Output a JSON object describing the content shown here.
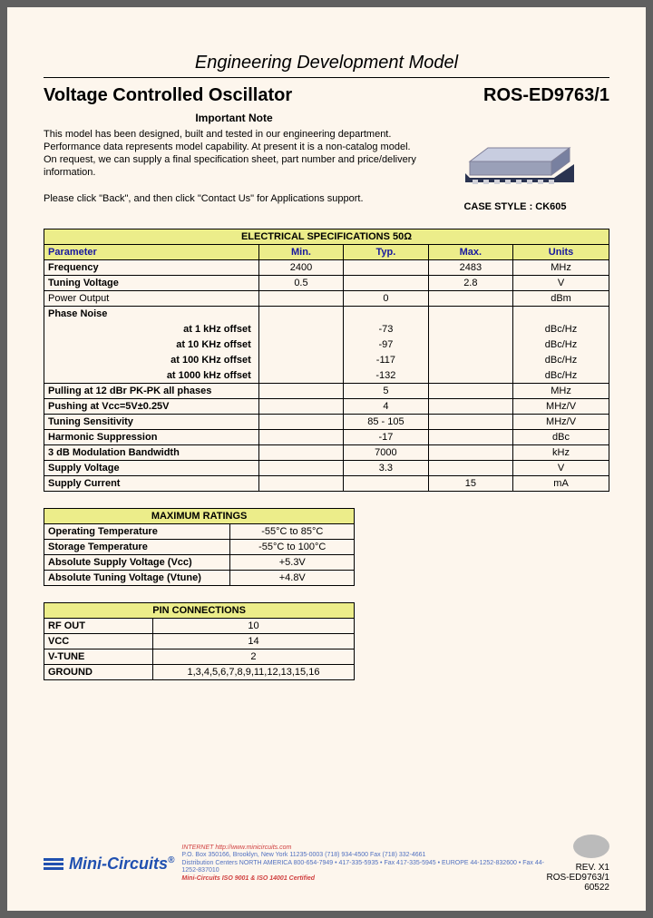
{
  "header": {
    "doc_type": "Engineering Development Model",
    "title": "Voltage Controlled Oscillator",
    "part_number": "ROS-ED9763/1",
    "note_heading": "Important Note",
    "note_body": "This model has been designed, built and tested in our engineering department. Performance data represents model capability. At present it is a non-catalog model. On request, we can supply a final specification sheet, part number and price/delivery information.",
    "note_contact": "Please click \"Back\", and then click \"Contact Us\" for Applications support.",
    "case_style": "CASE STYLE : CK605"
  },
  "colors": {
    "page_bg": "#fdf6ed",
    "table_header_bg": "#eced8a",
    "header_text": "#1818a0",
    "border": "#000000"
  },
  "elec_spec": {
    "title": "ELECTRICAL SPECIFICATIONS   50Ω",
    "columns": [
      "Parameter",
      "Min.",
      "Typ.",
      "Max.",
      "Units"
    ],
    "rows": [
      {
        "param": "Frequency",
        "min": "2400",
        "typ": "",
        "max": "2483",
        "units": "MHz",
        "bold": true
      },
      {
        "param": "Tuning Voltage",
        "min": "0.5",
        "typ": "",
        "max": "2.8",
        "units": "V",
        "bold": true
      },
      {
        "param": "Power Output",
        "min": "",
        "typ": "0",
        "max": "",
        "units": "dBm",
        "bold": false
      }
    ],
    "phase_noise_label": "Phase Noise",
    "phase_noise": [
      {
        "label": "at 1 kHz offset",
        "typ": "-73",
        "units": "dBc/Hz"
      },
      {
        "label": "at 10 KHz offset",
        "typ": "-97",
        "units": "dBc/Hz"
      },
      {
        "label": "at 100 KHz offset",
        "typ": "-117",
        "units": "dBc/Hz"
      },
      {
        "label": "at 1000 kHz offset",
        "typ": "-132",
        "units": "dBc/Hz"
      }
    ],
    "rows2": [
      {
        "param": "Pulling at 12 dBr PK-PK all phases",
        "min": "",
        "typ": "5",
        "max": "",
        "units": "MHz",
        "bold": true
      },
      {
        "param": "Pushing at Vcc=5V±0.25V",
        "min": "",
        "typ": "4",
        "max": "",
        "units": "MHz/V",
        "bold": true
      },
      {
        "param": "Tuning Sensitivity",
        "min": "",
        "typ": "85 - 105",
        "max": "",
        "units": "MHz/V",
        "bold": true
      },
      {
        "param": "Harmonic Suppression",
        "min": "",
        "typ": "-17",
        "max": "",
        "units": "dBc",
        "bold": true
      },
      {
        "param": "3 dB Modulation Bandwidth",
        "min": "",
        "typ": "7000",
        "max": "",
        "units": "kHz",
        "bold": true
      },
      {
        "param": "Supply Voltage",
        "min": "",
        "typ": "3.3",
        "max": "",
        "units": "V",
        "bold": true
      },
      {
        "param": "Supply Current",
        "min": "",
        "typ": "",
        "max": "15",
        "units": "mA",
        "bold": true
      }
    ]
  },
  "max_ratings": {
    "title": "MAXIMUM RATINGS",
    "rows": [
      {
        "param": "Operating Temperature",
        "val": "-55°C to 85°C"
      },
      {
        "param": "Storage Temperature",
        "val": "-55°C to 100°C"
      },
      {
        "param": "Absolute Supply Voltage (Vcc)",
        "val": "+5.3V"
      },
      {
        "param": "Absolute Tuning Voltage (Vtune)",
        "val": "+4.8V"
      }
    ]
  },
  "pin_conn": {
    "title": "PIN CONNECTIONS",
    "rows": [
      {
        "param": "RF OUT",
        "val": "10"
      },
      {
        "param": "VCC",
        "val": "14"
      },
      {
        "param": "V-TUNE",
        "val": "2"
      },
      {
        "param": "GROUND",
        "val": "1,3,4,5,6,7,8,9,11,12,13,15,16"
      }
    ]
  },
  "footer": {
    "brand": "Mini-Circuits",
    "addr1": "P.O. Box 350166, Brooklyn, New York 11235-0003 (718) 934-4500 Fax (718) 332-4661",
    "addr2": "Distribution Centers NORTH AMERICA 800-654-7949 • 417-335-5935 • Fax 417-335-5945 • EUROPE 44-1252-832600 • Fax 44-1252-837010",
    "internet": "INTERNET http://www.minicircuits.com",
    "iso": "Mini-Circuits ISO 9001 & ISO 14001 Certified",
    "rev": "REV. X1",
    "part": "ROS-ED9763/1",
    "code": "60522"
  }
}
